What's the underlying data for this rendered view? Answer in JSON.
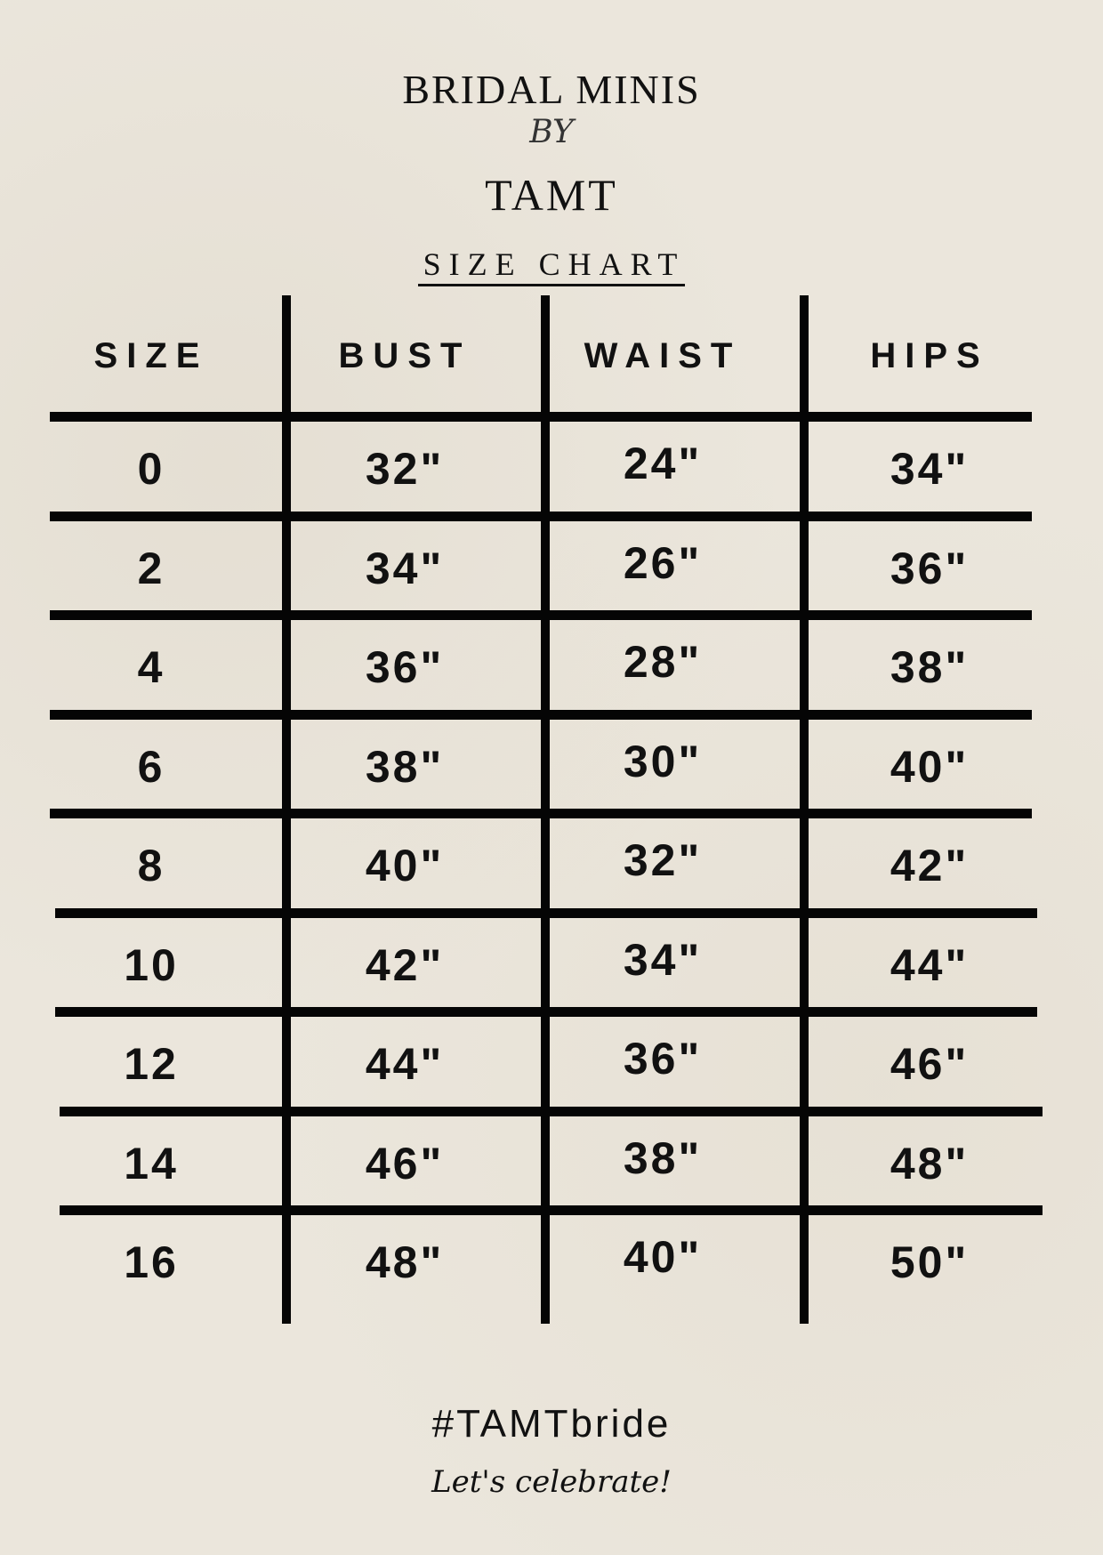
{
  "header": {
    "brand_line1": "BRIDAL MINIS",
    "brand_by": "BY",
    "brand_line2": "TAMT",
    "subtitle": "SIZE CHART"
  },
  "table": {
    "columns": [
      "SIZE",
      "BUST",
      "WAIST",
      "HIPS"
    ],
    "rows": [
      [
        "0",
        "32\"",
        "24\"",
        "34\""
      ],
      [
        "2",
        "34\"",
        "26\"",
        "36\""
      ],
      [
        "4",
        "36\"",
        "28\"",
        "38\""
      ],
      [
        "6",
        "38\"",
        "30\"",
        "40\""
      ],
      [
        "8",
        "40\"",
        "32\"",
        "42\""
      ],
      [
        "10",
        "42\"",
        "34\"",
        "44\""
      ],
      [
        "12",
        "44\"",
        "36\"",
        "46\""
      ],
      [
        "14",
        "46\"",
        "38\"",
        "48\""
      ],
      [
        "16",
        "48\"",
        "40\"",
        "50\""
      ]
    ]
  },
  "footer": {
    "hashtag": "#TAMTbride",
    "tagline": "Let's celebrate!"
  },
  "colors": {
    "background": "#ebe6dc",
    "ink": "#050505"
  }
}
